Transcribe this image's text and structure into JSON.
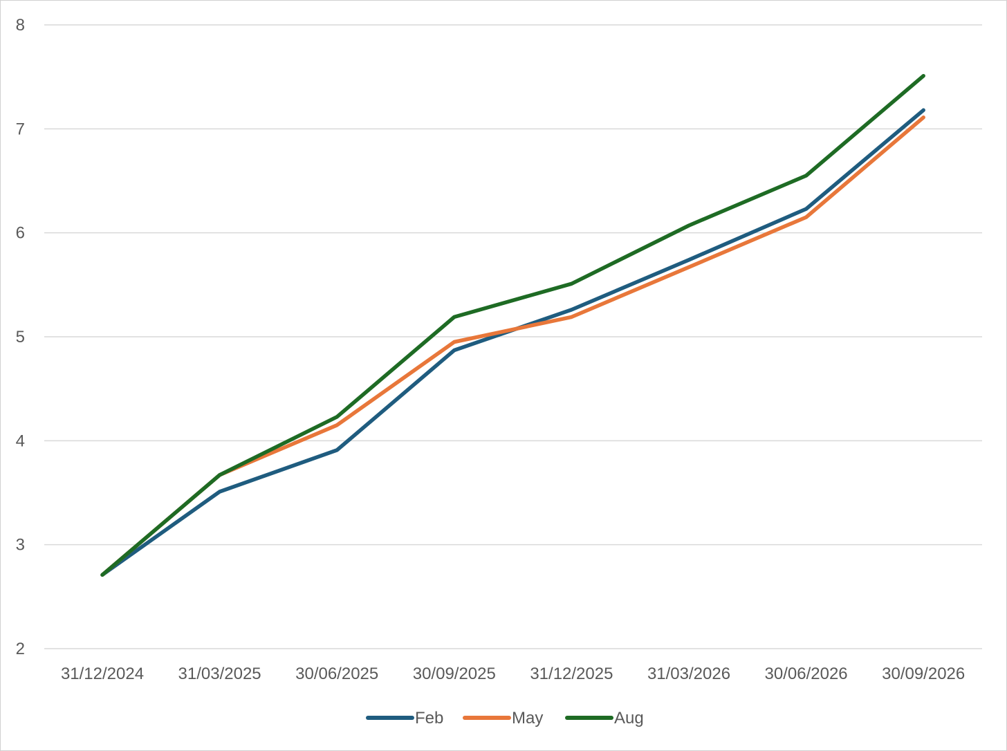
{
  "chart_data": {
    "type": "line",
    "title": "",
    "xlabel": "",
    "ylabel": "",
    "categories": [
      "31/12/2024",
      "31/03/2025",
      "30/06/2025",
      "30/09/2025",
      "31/12/2025",
      "31/03/2026",
      "30/06/2026",
      "30/09/2026"
    ],
    "y_ticks": [
      "2",
      "3",
      "4",
      "5",
      "6",
      "7",
      "8"
    ],
    "ylim": [
      2,
      8
    ],
    "grid": true,
    "legend_position": "bottom",
    "series": [
      {
        "name": "Feb",
        "color": "#1f5c7f",
        "values": [
          2.71,
          3.51,
          3.91,
          4.87,
          5.26,
          5.74,
          6.23,
          7.18
        ]
      },
      {
        "name": "May",
        "color": "#e8773a",
        "values": [
          2.71,
          3.67,
          4.15,
          4.95,
          5.19,
          5.67,
          6.15,
          7.11
        ]
      },
      {
        "name": "Aug",
        "color": "#1e6b24",
        "values": [
          2.71,
          3.67,
          4.23,
          5.19,
          5.51,
          6.07,
          6.55,
          7.51
        ]
      }
    ]
  }
}
